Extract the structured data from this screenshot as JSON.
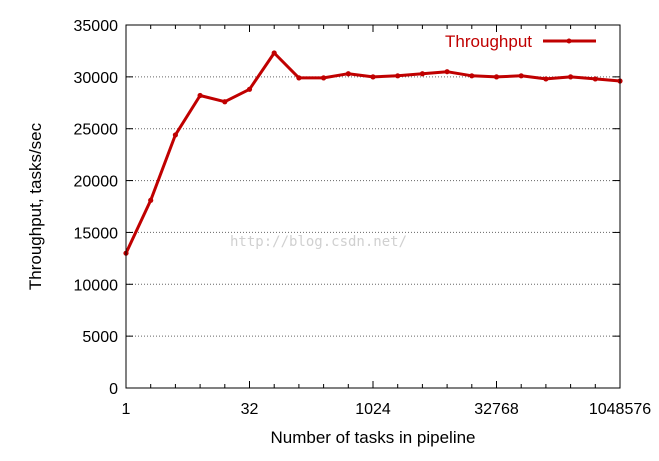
{
  "chart_data": {
    "type": "line",
    "title": "",
    "xlabel": "Number of tasks in pipeline",
    "ylabel": "Throughput, tasks/sec",
    "x_scale": "log2",
    "xlim": [
      1,
      1048576
    ],
    "ylim": [
      0,
      35000
    ],
    "x_ticks": [
      {
        "value": 1,
        "label": "1"
      },
      {
        "value": 32,
        "label": "32"
      },
      {
        "value": 1024,
        "label": "1024"
      },
      {
        "value": 32768,
        "label": "32768"
      },
      {
        "value": 1048576,
        "label": "1048576"
      }
    ],
    "y_ticks": [
      {
        "value": 0,
        "label": "0"
      },
      {
        "value": 5000,
        "label": "5000"
      },
      {
        "value": 10000,
        "label": "10000"
      },
      {
        "value": 15000,
        "label": "15000"
      },
      {
        "value": 20000,
        "label": "20000"
      },
      {
        "value": 25000,
        "label": "25000"
      },
      {
        "value": 30000,
        "label": "30000"
      },
      {
        "value": 35000,
        "label": "35000"
      }
    ],
    "grid": "horizontal dotted",
    "legend_position": "top-right",
    "series": [
      {
        "name": "Throughput",
        "color": "#c00000",
        "x": [
          1,
          2,
          4,
          8,
          16,
          32,
          64,
          128,
          256,
          512,
          1024,
          2048,
          4096,
          8192,
          16384,
          32768,
          65536,
          131072,
          262144,
          524288,
          1048576
        ],
        "y": [
          13000,
          18100,
          24400,
          28200,
          27600,
          28800,
          32300,
          29900,
          29900,
          30300,
          30000,
          30100,
          30300,
          30500,
          30100,
          30000,
          30100,
          29800,
          30000,
          29800,
          29600
        ]
      }
    ]
  },
  "watermark": "http://blog.csdn.net/"
}
